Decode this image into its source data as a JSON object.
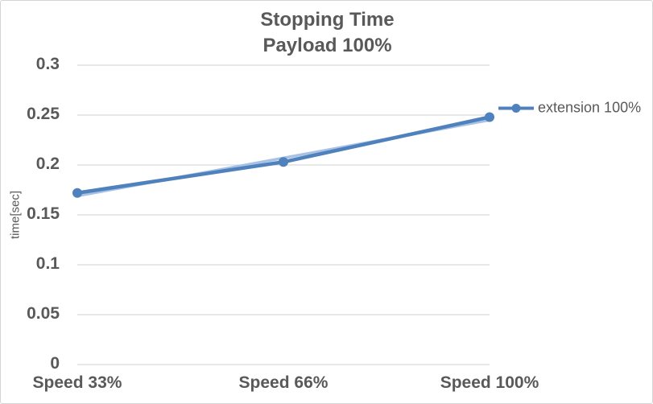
{
  "window": {
    "background": "#ffffff",
    "border_color": "#d4d4d4"
  },
  "chart_data": {
    "type": "line",
    "title": "Stopping Time",
    "subtitle": "Payload 100%",
    "categories": [
      "Speed 33%",
      "Speed 66%",
      "Speed 100%"
    ],
    "series": [
      {
        "name": "extension 100%",
        "values": [
          0.172,
          0.203,
          0.248
        ],
        "color": "#4f81bd",
        "marker": "circle"
      }
    ],
    "trendline": {
      "endpoint_values": [
        0.169,
        0.245
      ],
      "color": "#a7c2e4"
    },
    "xlabel": "",
    "ylabel": "time[sec]",
    "ylim": [
      0,
      0.3
    ],
    "ytick_labels": [
      "0",
      "0.05",
      "0.1",
      "0.15",
      "0.2",
      "0.25",
      "0.3"
    ],
    "grid": "horizontal",
    "grid_color": "#d9d9d9",
    "text_color": "#595959",
    "legend_position": "right"
  }
}
